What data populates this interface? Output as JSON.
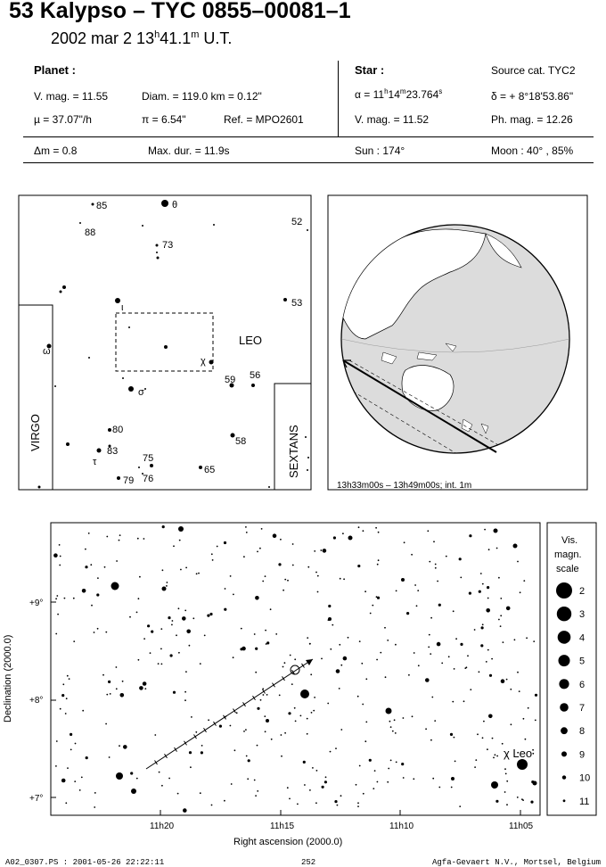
{
  "header": {
    "title": "53 Kalypso  –  TYC 0855–00081–1",
    "date_prefix": "2002 mar  2  13",
    "date_h": "h",
    "date_min": "41.1",
    "date_m": "m",
    "date_suffix": " U.T."
  },
  "planet": {
    "heading": "Planet :",
    "vmag": "V. mag. = 11.55",
    "diam": "Diam. = 119.0 km = 0.12\"",
    "mu": "µ =  37.07\"/h",
    "pi": "π =  6.54\"",
    "ref": "Ref. = MPO2601"
  },
  "star": {
    "heading": "Star :",
    "source": "Source cat.  TYC2",
    "alpha_prefix": "α = 11",
    "alpha_h": "h",
    "alpha_min": "14",
    "alpha_m": "m",
    "alpha_sec": "23.764",
    "alpha_s": "s",
    "delta": "δ = + 8°18'53.86\"",
    "vmag": "V. mag. = 11.52",
    "phmag": "Ph. mag. = 12.26"
  },
  "bottom_row": {
    "dm": "Δm = 0.8",
    "maxdur": "Max. dur. = 11.9s",
    "sun": "Sun : 174°",
    "moon": "Moon :  40° , 85%"
  },
  "finder": {
    "constellation_leo": "LEO",
    "constellation_virgo": "VIRGO",
    "constellation_sextans": "SEXTANS",
    "star_labels": [
      "85",
      "θ",
      "88",
      "73",
      "52",
      "ι",
      "53",
      "ω",
      "χ",
      "59",
      "56",
      "σ",
      "80",
      "58",
      "τ",
      "83",
      "75",
      "65",
      "79",
      "76"
    ]
  },
  "globe": {
    "caption": "13h33m00s – 13h49m00s; int.  1m",
    "colors": {
      "land": "#ffffff",
      "shade": "#dcdcdc"
    }
  },
  "star_chart": {
    "xlabel": "Right ascension (2000.0)",
    "ylabel": "Declination (2000.0)",
    "xticks": [
      "11h20",
      "11h15",
      "11h10",
      "11h05"
    ],
    "yticks": [
      "+9°",
      "+8°",
      "+7°"
    ],
    "annotation": "χ Leo",
    "legend_title_1": "Vis.",
    "legend_title_2": "magn.",
    "legend_title_3": "scale",
    "legend_magnitudes": [
      2,
      3,
      4,
      5,
      6,
      7,
      8,
      9,
      10,
      11
    ],
    "legend_labels": [
      "2",
      "3",
      "4",
      "5",
      "6",
      "7",
      "8",
      "9",
      "10",
      "11"
    ]
  },
  "footer": {
    "file": "A02_0307.PS : 2001-05-26 22:22:11",
    "page": "252",
    "printer": "Agfa-Gevaert N.V., Mortsel, Belgium"
  }
}
